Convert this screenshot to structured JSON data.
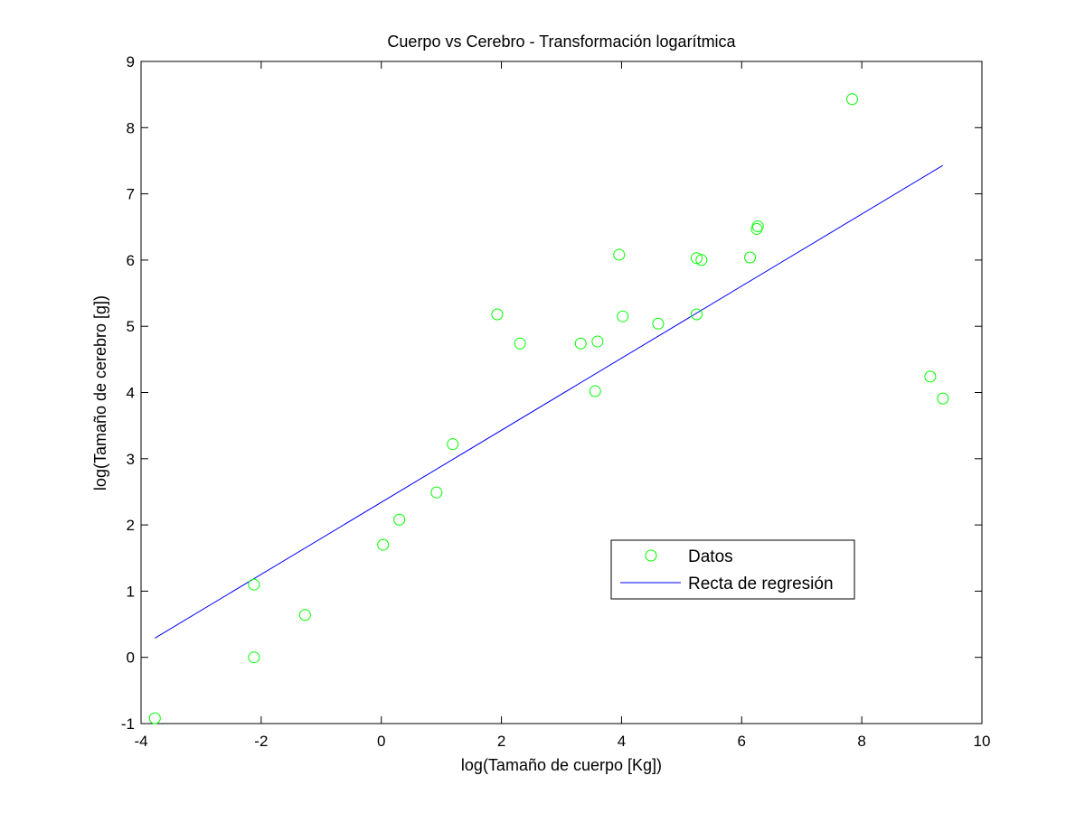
{
  "chart_data": {
    "type": "scatter",
    "title": "Cuerpo vs Cerebro - Transformación logarítmica",
    "xlabel": "log(Tamaño de cuerpo [Kg])",
    "ylabel": "log(Tamaño de cerebro [g])",
    "xlim": [
      -4,
      10
    ],
    "ylim": [
      -1,
      9
    ],
    "xticks": [
      -4,
      -2,
      0,
      2,
      4,
      6,
      8,
      10
    ],
    "yticks": [
      -1,
      0,
      1,
      2,
      3,
      4,
      5,
      6,
      7,
      8,
      9
    ],
    "xtick_labels": [
      "-4",
      "-2",
      "0",
      "2",
      "4",
      "6",
      "8",
      "10"
    ],
    "ytick_labels": [
      "-1",
      "0",
      "1",
      "2",
      "3",
      "4",
      "5",
      "6",
      "7",
      "8",
      "9"
    ],
    "grid": false,
    "legend_position": "lower-right",
    "series": [
      {
        "name": "Datos",
        "kind": "scatter",
        "marker": "circle",
        "color": "#00ff00",
        "points": [
          {
            "x": -3.77,
            "y": -0.92
          },
          {
            "x": -2.12,
            "y": 0.0
          },
          {
            "x": -2.12,
            "y": 1.1
          },
          {
            "x": -1.27,
            "y": 0.64
          },
          {
            "x": 0.03,
            "y": 1.7
          },
          {
            "x": 0.3,
            "y": 2.08
          },
          {
            "x": 0.92,
            "y": 2.49
          },
          {
            "x": 1.19,
            "y": 3.22
          },
          {
            "x": 1.93,
            "y": 5.18
          },
          {
            "x": 2.31,
            "y": 4.74
          },
          {
            "x": 3.32,
            "y": 4.74
          },
          {
            "x": 3.56,
            "y": 4.02
          },
          {
            "x": 3.6,
            "y": 4.77
          },
          {
            "x": 3.96,
            "y": 6.08
          },
          {
            "x": 4.02,
            "y": 5.15
          },
          {
            "x": 4.61,
            "y": 5.04
          },
          {
            "x": 5.25,
            "y": 5.18
          },
          {
            "x": 5.25,
            "y": 6.03
          },
          {
            "x": 5.33,
            "y": 6.0
          },
          {
            "x": 6.14,
            "y": 6.04
          },
          {
            "x": 6.25,
            "y": 6.47
          },
          {
            "x": 6.27,
            "y": 6.51
          },
          {
            "x": 7.84,
            "y": 8.43
          },
          {
            "x": 9.14,
            "y": 4.24
          },
          {
            "x": 9.35,
            "y": 3.91
          }
        ]
      },
      {
        "name": "Recta de regresión",
        "kind": "line",
        "color": "#0000ff",
        "points": [
          {
            "x": -3.77,
            "y": 0.29
          },
          {
            "x": 9.35,
            "y": 7.43
          }
        ]
      }
    ]
  }
}
